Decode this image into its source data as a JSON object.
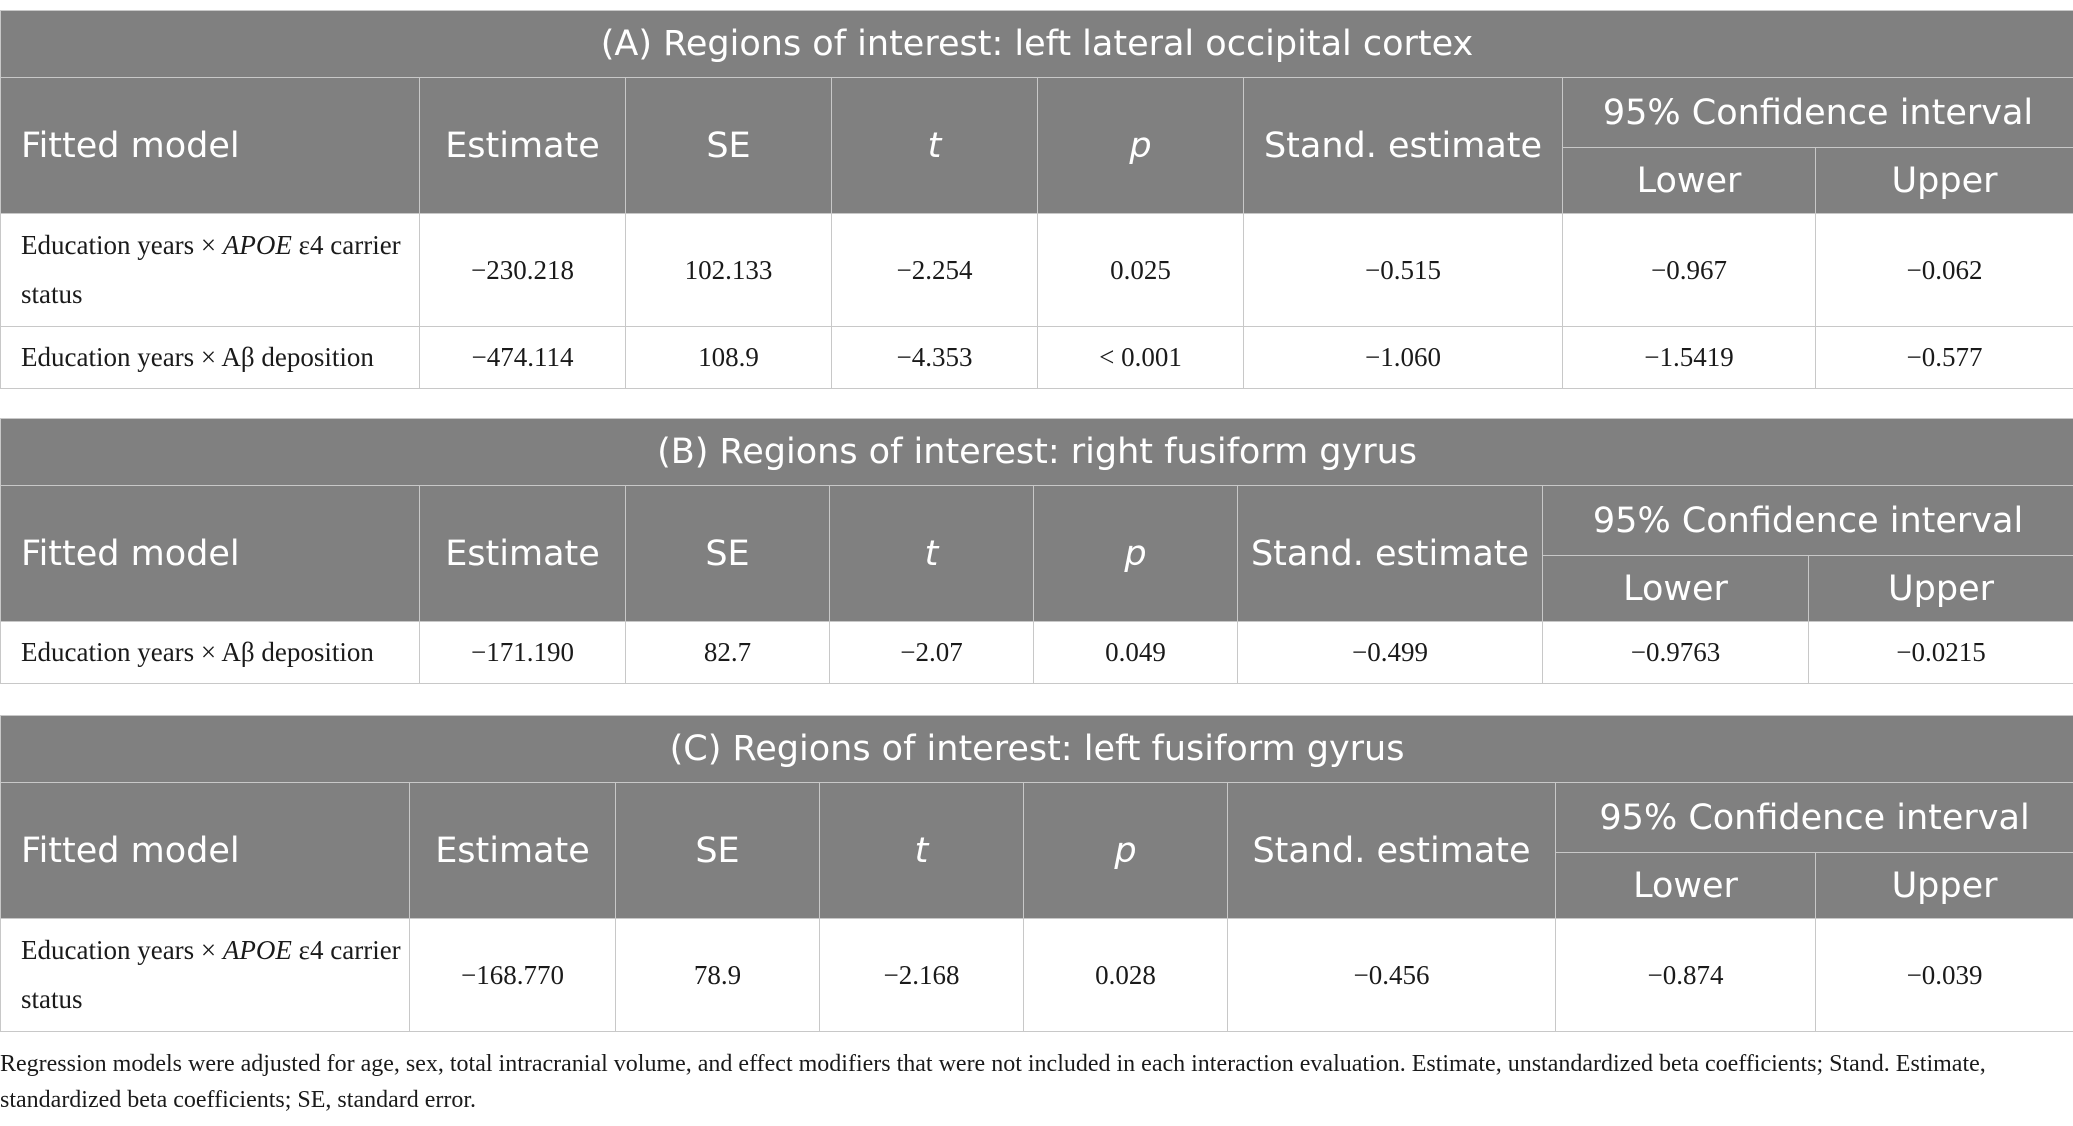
{
  "header_labels": {
    "fitted_model": "Fitted model",
    "estimate": "Estimate",
    "se": "SE",
    "t": "t",
    "p": "p",
    "stand_estimate": "Stand. estimate",
    "ci": "95% Confidence interval",
    "lower": "Lower",
    "upper": "Upper"
  },
  "panels": [
    {
      "title": "(A) Regions of interest: left lateral occipital cortex",
      "rows": [
        {
          "model_prefix": "Education years × ",
          "model_italic": "APOE",
          "model_suffix": " ε4 carrier status",
          "estimate": "−230.218",
          "se": "102.133",
          "t": "−2.254",
          "p": "0.025",
          "stand_estimate": "−0.515",
          "lower": "−0.967",
          "upper": "−0.062"
        },
        {
          "model_prefix": "Education years × Aβ deposition",
          "model_italic": "",
          "model_suffix": "",
          "estimate": "−474.114",
          "se": "108.9",
          "t": "−4.353",
          "p": "< 0.001",
          "stand_estimate": "−1.060",
          "lower": "−1.5419",
          "upper": "−0.577"
        }
      ]
    },
    {
      "title": "(B) Regions of interest: right fusiform gyrus",
      "rows": [
        {
          "model_prefix": "Education years × Aβ deposition",
          "model_italic": "",
          "model_suffix": "",
          "estimate": "−171.190",
          "se": "82.7",
          "t": "−2.07",
          "p": "0.049",
          "stand_estimate": "−0.499",
          "lower": "−0.9763",
          "upper": "−0.0215"
        }
      ]
    },
    {
      "title": "(C) Regions of interest: left fusiform gyrus",
      "rows": [
        {
          "model_prefix": "Education years × ",
          "model_italic": "APOE",
          "model_suffix": " ε4 carrier status",
          "estimate": "−168.770",
          "se": "78.9",
          "t": "−2.168",
          "p": "0.028",
          "stand_estimate": "−0.456",
          "lower": "−0.874",
          "upper": "−0.039"
        }
      ]
    }
  ],
  "footnote": "Regression models were adjusted for age, sex, total intracranial volume, and effect modifiers that were not included in each interaction evaluation. Estimate, unstandardized beta coefficients; Stand. Estimate, standardized beta coefficients; SE, standard error."
}
